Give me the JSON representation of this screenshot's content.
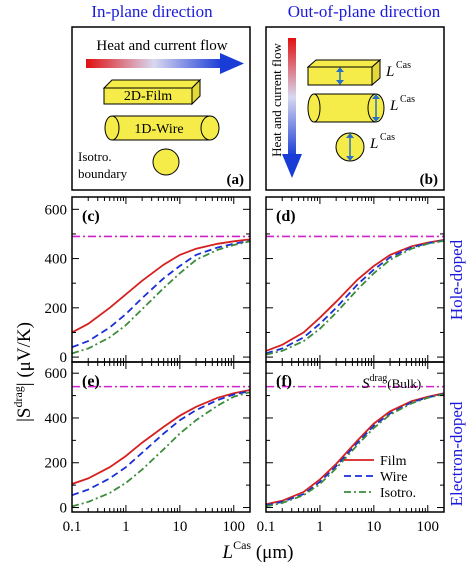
{
  "figure": {
    "header_left": "In-plane direction",
    "header_right": "Out-of-plane direction",
    "header_color": "#1a1adc",
    "schematic_a": {
      "flow_label": "Heat and current flow",
      "film_label": "2D-Film",
      "wire_label": "1D-Wire",
      "isotro_label_1": "Isotro.",
      "isotro_label_2": "boundary",
      "panel_label": "(a)"
    },
    "schematic_b": {
      "flow_label": "Heat and current flow",
      "lcas_label": "L",
      "lcas_sup": "Cas",
      "panel_label": "(b)"
    },
    "ylabel_main": "|S",
    "ylabel_sup": "drag",
    "ylabel_units": "| (μV/K)",
    "xlabel_main": "L",
    "xlabel_sup": "Cas",
    "xlabel_units": " (μm)",
    "side_label_top": "Hole-doped",
    "side_label_bottom": "Electron-doped",
    "side_color": "#1a1adc",
    "bulk_label_s": "S",
    "bulk_label_sup": "drag",
    "bulk_label_rest": "(Bulk)",
    "legend": [
      {
        "label": "Film",
        "color": "#d62020",
        "dash": ""
      },
      {
        "label": "Wire",
        "color": "#1a2fd6",
        "dash": "7,4"
      },
      {
        "label": "Isotro.",
        "color": "#3d8c3d",
        "dash": "7,3,2,3"
      }
    ],
    "film_color": "#f5ec4a",
    "bulk_line_color": "#d020d0"
  },
  "chart_data": [
    {
      "panel": "(c)",
      "type": "line",
      "xscale": "log",
      "xlim": [
        0.1,
        200
      ],
      "ylim": [
        -20,
        650
      ],
      "xticks": [
        "0.1",
        "1",
        "10",
        "100"
      ],
      "yticks": [
        "0",
        "200",
        "400",
        "600"
      ],
      "bulk": 490,
      "series": [
        {
          "name": "Film",
          "x": [
            0.1,
            0.2,
            0.5,
            1,
            2,
            5,
            10,
            20,
            50,
            100,
            200
          ],
          "y": [
            100,
            135,
            200,
            255,
            310,
            375,
            415,
            440,
            460,
            470,
            478
          ]
        },
        {
          "name": "Wire",
          "x": [
            0.1,
            0.2,
            0.5,
            1,
            2,
            5,
            10,
            20,
            50,
            100,
            200
          ],
          "y": [
            40,
            65,
            120,
            175,
            240,
            320,
            370,
            415,
            445,
            460,
            472
          ]
        },
        {
          "name": "Isotro.",
          "x": [
            0.1,
            0.2,
            0.5,
            1,
            2,
            5,
            10,
            20,
            50,
            100,
            200
          ],
          "y": [
            15,
            35,
            80,
            130,
            195,
            280,
            340,
            395,
            435,
            455,
            470
          ]
        }
      ]
    },
    {
      "panel": "(d)",
      "type": "line",
      "xscale": "log",
      "xlim": [
        0.1,
        200
      ],
      "ylim": [
        -20,
        650
      ],
      "xticks": [
        "0.1",
        "1",
        "10",
        "100"
      ],
      "yticks": [
        "0",
        "200",
        "400",
        "600"
      ],
      "bulk": 490,
      "series": [
        {
          "name": "Film",
          "x": [
            0.1,
            0.2,
            0.5,
            1,
            2,
            5,
            10,
            20,
            50,
            100,
            200
          ],
          "y": [
            25,
            50,
            100,
            160,
            225,
            315,
            370,
            415,
            450,
            465,
            476
          ]
        },
        {
          "name": "Wire",
          "x": [
            0.1,
            0.2,
            0.5,
            1,
            2,
            5,
            10,
            20,
            50,
            100,
            200
          ],
          "y": [
            15,
            35,
            80,
            135,
            200,
            295,
            355,
            405,
            445,
            462,
            474
          ]
        },
        {
          "name": "Isotro.",
          "x": [
            0.1,
            0.2,
            0.5,
            1,
            2,
            5,
            10,
            20,
            50,
            100,
            200
          ],
          "y": [
            10,
            25,
            65,
            115,
            180,
            275,
            340,
            395,
            440,
            460,
            472
          ]
        }
      ]
    },
    {
      "panel": "(e)",
      "type": "line",
      "xscale": "log",
      "xlim": [
        0.1,
        200
      ],
      "ylim": [
        -20,
        650
      ],
      "xticks": [
        "0.1",
        "1",
        "10",
        "100"
      ],
      "yticks": [
        "0",
        "200",
        "400",
        "600"
      ],
      "bulk": 540,
      "series": [
        {
          "name": "Film",
          "x": [
            0.1,
            0.2,
            0.5,
            1,
            2,
            5,
            10,
            20,
            50,
            100,
            200
          ],
          "y": [
            105,
            130,
            180,
            230,
            290,
            360,
            410,
            450,
            490,
            510,
            525
          ]
        },
        {
          "name": "Wire",
          "x": [
            0.1,
            0.2,
            0.5,
            1,
            2,
            5,
            10,
            20,
            50,
            100,
            200
          ],
          "y": [
            55,
            80,
            130,
            180,
            245,
            330,
            390,
            435,
            480,
            505,
            520
          ]
        },
        {
          "name": "Isotro.",
          "x": [
            0.1,
            0.2,
            0.5,
            1,
            2,
            5,
            10,
            20,
            50,
            100,
            200
          ],
          "y": [
            5,
            25,
            65,
            110,
            170,
            260,
            330,
            390,
            455,
            495,
            515
          ]
        }
      ]
    },
    {
      "panel": "(f)",
      "type": "line",
      "xscale": "log",
      "xlim": [
        0.1,
        200
      ],
      "ylim": [
        -20,
        650
      ],
      "xticks": [
        "0.1",
        "1",
        "10",
        "100"
      ],
      "yticks": [
        "0",
        "200",
        "400",
        "600"
      ],
      "bulk": 540,
      "series": [
        {
          "name": "Film",
          "x": [
            0.1,
            0.2,
            0.5,
            1,
            2,
            5,
            10,
            20,
            50,
            100,
            200
          ],
          "y": [
            15,
            30,
            70,
            125,
            195,
            300,
            375,
            430,
            475,
            495,
            510
          ]
        },
        {
          "name": "Wire",
          "x": [
            0.1,
            0.2,
            0.5,
            1,
            2,
            5,
            10,
            20,
            50,
            100,
            200
          ],
          "y": [
            10,
            25,
            60,
            115,
            185,
            290,
            365,
            420,
            470,
            492,
            508
          ]
        },
        {
          "name": "Isotro.",
          "x": [
            0.1,
            0.2,
            0.5,
            1,
            2,
            5,
            10,
            20,
            50,
            100,
            200
          ],
          "y": [
            5,
            20,
            55,
            105,
            175,
            280,
            355,
            415,
            465,
            490,
            506
          ]
        }
      ]
    }
  ]
}
